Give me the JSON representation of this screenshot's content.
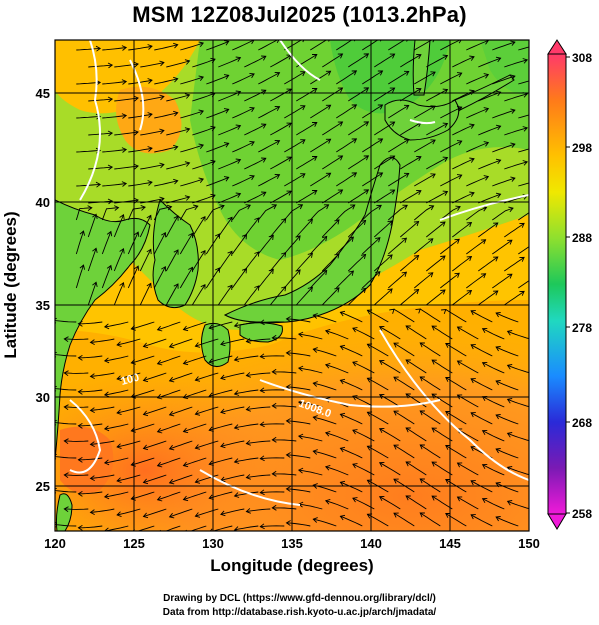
{
  "title": "MSM 12Z08Jul2025 (1013.2hPa)",
  "axes": {
    "xlabel": "Longitude (degrees)",
    "ylabel": "Latitude  (degrees)",
    "x_ticks": [
      "120",
      "125",
      "130",
      "135",
      "140",
      "145",
      "150"
    ],
    "y_ticks": [
      "25",
      "30",
      "35",
      "40",
      "45"
    ]
  },
  "colorbar": {
    "ticks": [
      "308",
      "298",
      "288",
      "278",
      "268",
      "258"
    ],
    "colors": [
      "#ff3a6a",
      "#ff8c1a",
      "#ffd200",
      "#b4e22a",
      "#2ec84a",
      "#21d6c2",
      "#1a8cff",
      "#2a2ad8",
      "#7a1ab4",
      "#e61ac8"
    ]
  },
  "contour_labels": [
    "100",
    "1008.0"
  ],
  "credits": {
    "line1": "Drawing by DCL (https://www.gfd-dennou.org/library/dcl/)",
    "line2": "Data from http://database.rish.kyoto-u.ac.jp/arch/jmadata/"
  }
}
